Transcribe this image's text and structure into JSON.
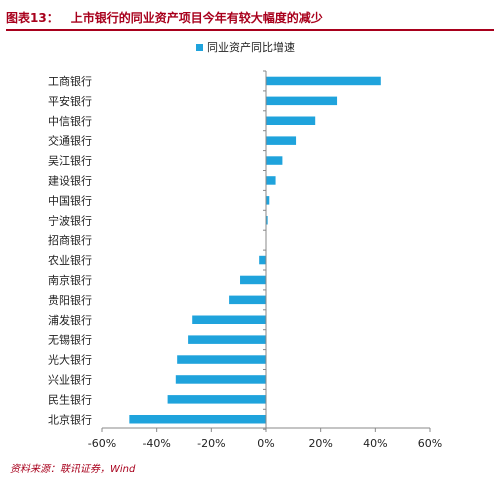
{
  "header": {
    "figure_label": "图表13：",
    "title": "上市银行的同业资产项目今年有较大幅度的减少"
  },
  "source_note": "资料来源：联讯证券，Wind",
  "chart_data": {
    "type": "bar",
    "orientation": "horizontal",
    "title": "",
    "xlabel": "",
    "ylabel": "",
    "legend": {
      "position": "top",
      "entries": [
        "同业资产同比增速"
      ]
    },
    "series": [
      {
        "name": "同业资产同比增速",
        "color": "#1fa3dc",
        "values": [
          0.42,
          0.26,
          0.18,
          0.11,
          0.06,
          0.035,
          0.012,
          0.006,
          0.0,
          -0.025,
          -0.095,
          -0.135,
          -0.27,
          -0.285,
          -0.325,
          -0.33,
          -0.36,
          -0.5
        ]
      }
    ],
    "categories": [
      "工商银行",
      "平安银行",
      "中信银行",
      "交通银行",
      "吴江银行",
      "建设银行",
      "中国银行",
      "宁波银行",
      "招商银行",
      "农业银行",
      "南京银行",
      "贵阳银行",
      "浦发银行",
      "无锡银行",
      "光大银行",
      "兴业银行",
      "民生银行",
      "北京银行"
    ],
    "xlim": [
      -0.6,
      0.6
    ],
    "xticks": [
      -0.6,
      -0.4,
      -0.2,
      0,
      0.2,
      0.4,
      0.6
    ],
    "xtick_labels": [
      "-60%",
      "-40%",
      "-20%",
      "0%",
      "20%",
      "40%",
      "60%"
    ],
    "grid": false
  }
}
